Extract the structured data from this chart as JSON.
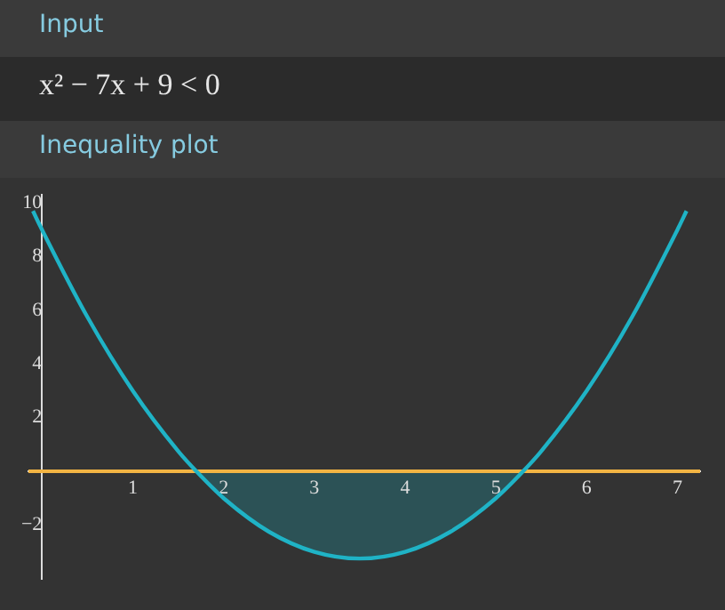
{
  "chart_data": {
    "type": "line",
    "title": "Inequality plot",
    "annotations": [
      "Input",
      "x² − 7x + 9 < 0"
    ],
    "xlim": [
      -0.15,
      7.25
    ],
    "ylim": [
      -4,
      10.3
    ],
    "xticks": [
      1,
      2,
      3,
      4,
      5,
      6,
      7
    ],
    "yticks": [
      {
        "value": -2,
        "label": "−2"
      },
      2,
      4,
      6,
      8,
      10
    ],
    "grid": false,
    "legend": false,
    "marker": "none",
    "line_style": "solid",
    "ref_lines": [
      {
        "axis": "y",
        "value": 0,
        "color": "#f2b443"
      }
    ],
    "series": [
      {
        "type": "area",
        "color": "#2c5256",
        "x": [
          1.7,
          2,
          2.5,
          3,
          3.5,
          4,
          4.5,
          5,
          5.3
        ],
        "values": [
          0,
          -1,
          -2.25,
          -3,
          -3.25,
          -3,
          -2.25,
          -1,
          0
        ]
      },
      {
        "type": "line",
        "color": "#1fb3c6",
        "x": [
          -0.1,
          0,
          0.5,
          1,
          1.5,
          1.7,
          2,
          2.5,
          3,
          3.5,
          4,
          4.5,
          5,
          5.3,
          5.5,
          6,
          6.5,
          7,
          7.1
        ],
        "values": [
          9.7,
          9,
          5.75,
          3,
          0.75,
          0,
          -1,
          -2.25,
          -3,
          -3.25,
          -3,
          -2.25,
          -1,
          0,
          0.75,
          3,
          5.75,
          9,
          9.7
        ]
      }
    ]
  }
}
